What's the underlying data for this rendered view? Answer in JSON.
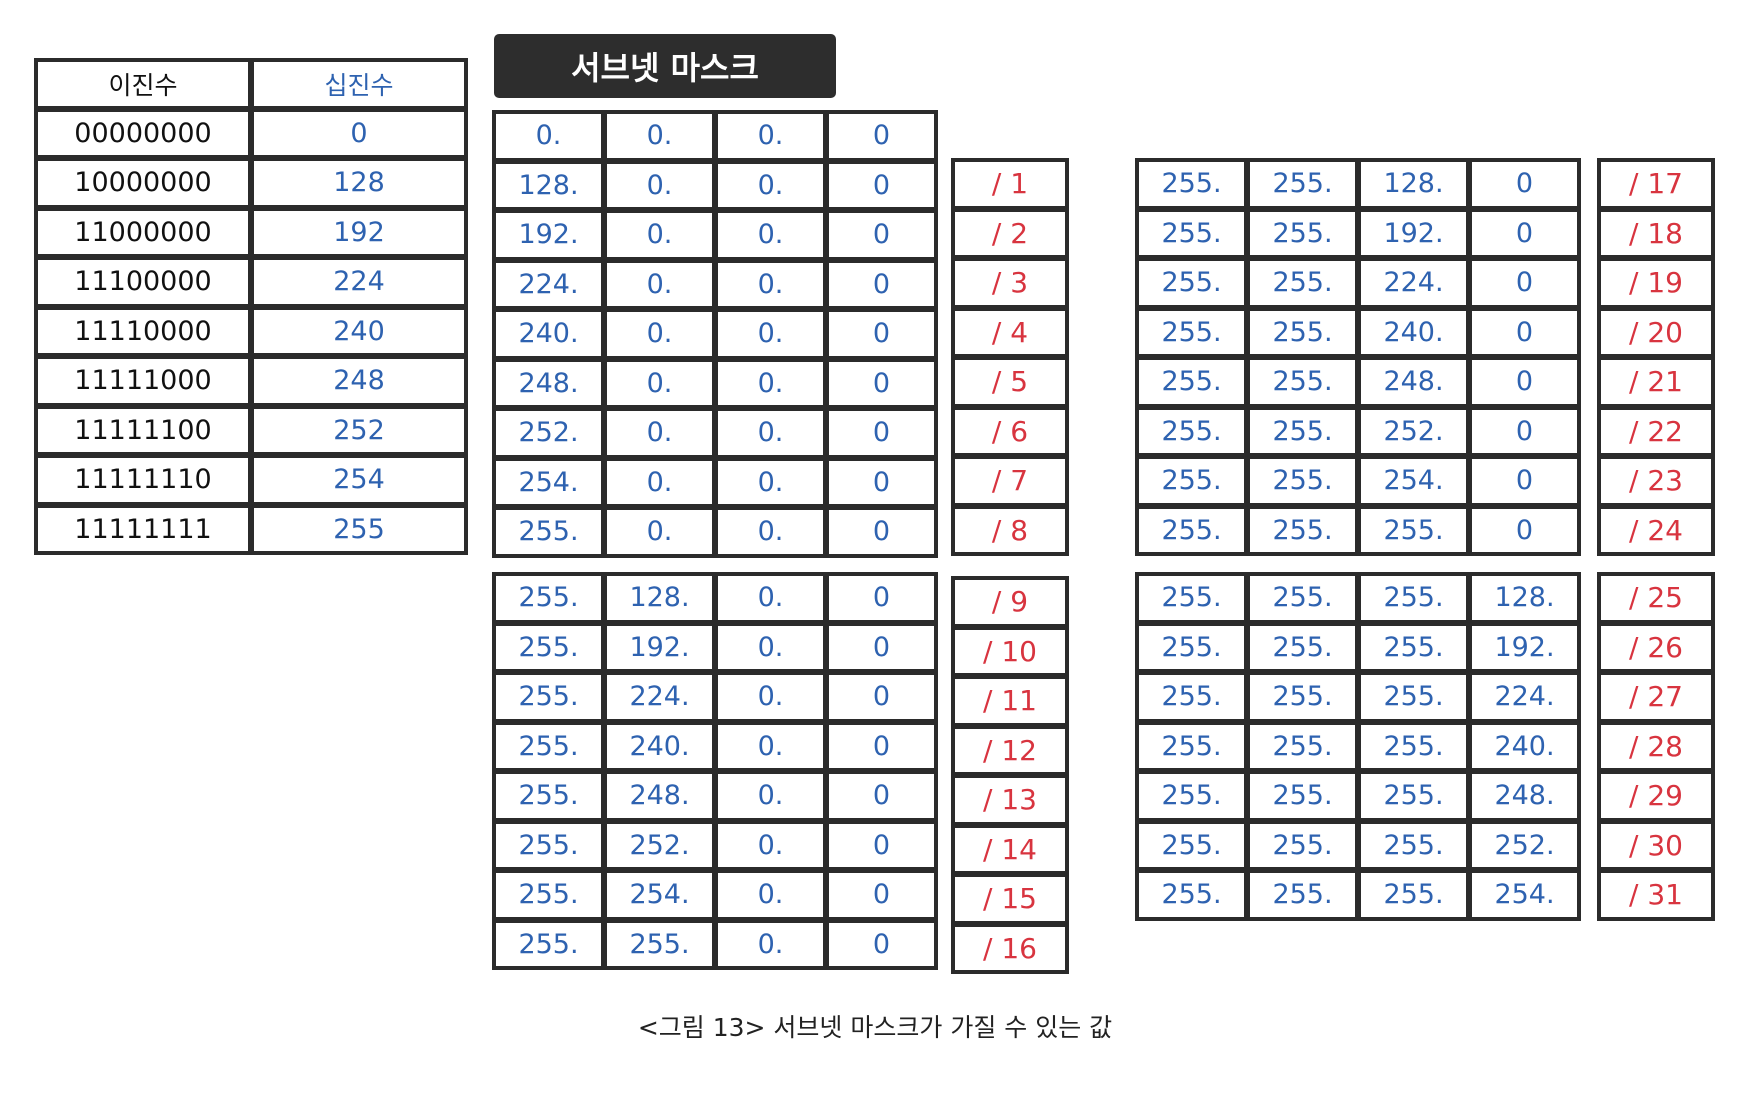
{
  "title": "서브넷 마스크",
  "caption": "<그림 13> 서브넷 마스크가 가질 수 있는 값",
  "binary_table": {
    "headers": [
      "이진수",
      "십진수"
    ],
    "rows": [
      [
        "00000000",
        "0"
      ],
      [
        "10000000",
        "128"
      ],
      [
        "11000000",
        "192"
      ],
      [
        "11100000",
        "224"
      ],
      [
        "11110000",
        "240"
      ],
      [
        "11111000",
        "248"
      ],
      [
        "11111100",
        "252"
      ],
      [
        "11111110",
        "254"
      ],
      [
        "11111111",
        "255"
      ]
    ]
  },
  "mask_blocks": [
    {
      "rows": [
        [
          "0.",
          "0.",
          "0.",
          "0"
        ],
        [
          "128.",
          "0.",
          "0.",
          "0"
        ],
        [
          "192.",
          "0.",
          "0.",
          "0"
        ],
        [
          "224.",
          "0.",
          "0.",
          "0"
        ],
        [
          "240.",
          "0.",
          "0.",
          "0"
        ],
        [
          "248.",
          "0.",
          "0.",
          "0"
        ],
        [
          "252.",
          "0.",
          "0.",
          "0"
        ],
        [
          "254.",
          "0.",
          "0.",
          "0"
        ],
        [
          "255.",
          "0.",
          "0.",
          "0"
        ]
      ],
      "prefixes": [
        "/ 1",
        "/ 2",
        "/ 3",
        "/ 4",
        "/ 5",
        "/ 6",
        "/ 7",
        "/ 8"
      ]
    },
    {
      "rows": [
        [
          "255.",
          "128.",
          "0.",
          "0"
        ],
        [
          "255.",
          "192.",
          "0.",
          "0"
        ],
        [
          "255.",
          "224.",
          "0.",
          "0"
        ],
        [
          "255.",
          "240.",
          "0.",
          "0"
        ],
        [
          "255.",
          "248.",
          "0.",
          "0"
        ],
        [
          "255.",
          "252.",
          "0.",
          "0"
        ],
        [
          "255.",
          "254.",
          "0.",
          "0"
        ],
        [
          "255.",
          "255.",
          "0.",
          "0"
        ]
      ],
      "prefixes": [
        "/ 9",
        "/ 10",
        "/ 11",
        "/ 12",
        "/ 13",
        "/ 14",
        "/ 15",
        "/ 16"
      ]
    },
    {
      "rows": [
        [
          "255.",
          "255.",
          "128.",
          "0"
        ],
        [
          "255.",
          "255.",
          "192.",
          "0"
        ],
        [
          "255.",
          "255.",
          "224.",
          "0"
        ],
        [
          "255.",
          "255.",
          "240.",
          "0"
        ],
        [
          "255.",
          "255.",
          "248.",
          "0"
        ],
        [
          "255.",
          "255.",
          "252.",
          "0"
        ],
        [
          "255.",
          "255.",
          "254.",
          "0"
        ],
        [
          "255.",
          "255.",
          "255.",
          "0"
        ]
      ],
      "prefixes": [
        "/ 17",
        "/ 18",
        "/ 19",
        "/ 20",
        "/ 21",
        "/ 22",
        "/ 23",
        "/ 24"
      ]
    },
    {
      "rows": [
        [
          "255.",
          "255.",
          "255.",
          "128."
        ],
        [
          "255.",
          "255.",
          "255.",
          "192."
        ],
        [
          "255.",
          "255.",
          "255.",
          "224."
        ],
        [
          "255.",
          "255.",
          "255.",
          "240."
        ],
        [
          "255.",
          "255.",
          "255.",
          "248."
        ],
        [
          "255.",
          "255.",
          "255.",
          "252."
        ],
        [
          "255.",
          "255.",
          "255.",
          "254."
        ]
      ],
      "prefixes": [
        "/ 25",
        "/ 26",
        "/ 27",
        "/ 28",
        "/ 29",
        "/ 30",
        "/ 31"
      ]
    }
  ],
  "colors": {
    "binary_text": "#111111",
    "decimal_text": "#2e62b0",
    "prefix_text": "#d8343f",
    "border": "#2b2b2b",
    "banner_bg": "#2d2d2d"
  }
}
